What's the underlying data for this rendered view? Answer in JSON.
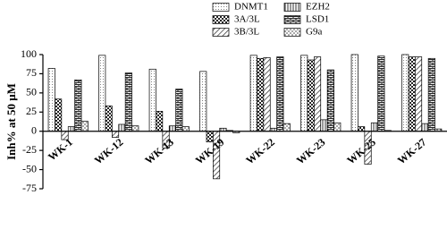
{
  "chart_data": {
    "type": "bar",
    "y_label": "Inh% at 50 μM",
    "categories": [
      "WK-1",
      "WK-12",
      "WK-13",
      "WK-19",
      "WK-22",
      "WK-23",
      "WK-25",
      "WK-27"
    ],
    "series": [
      {
        "name": "DNMT1",
        "pattern": "dots",
        "color": "#000000",
        "values": [
          82,
          99,
          81,
          78,
          99,
          99,
          100,
          100
        ]
      },
      {
        "name": "3A/3L",
        "pattern": "checker",
        "color": "#000000",
        "values": [
          42,
          33,
          26,
          -14,
          95,
          93,
          6,
          97
        ]
      },
      {
        "name": "3B/3L",
        "pattern": "hatch",
        "color": "#000000",
        "values": [
          -11,
          -8,
          -22,
          -62,
          96,
          97,
          -43,
          97
        ]
      },
      {
        "name": "EZH2",
        "pattern": "vlines",
        "color": "#000000",
        "values": [
          6,
          9,
          7,
          4,
          4,
          15,
          11,
          10
        ]
      },
      {
        "name": "LSD1",
        "pattern": "brick",
        "color": "#000000",
        "values": [
          67,
          76,
          55,
          1,
          97,
          80,
          98,
          95
        ]
      },
      {
        "name": "G9a",
        "pattern": "smalldots",
        "color": "#000000",
        "values": [
          13,
          7,
          6,
          -2,
          10,
          11,
          1,
          3
        ]
      }
    ],
    "ylim": [
      -75,
      100
    ],
    "yticks": [
      -75,
      -50,
      -25,
      0,
      25,
      50,
      75,
      100
    ],
    "grid": false
  }
}
